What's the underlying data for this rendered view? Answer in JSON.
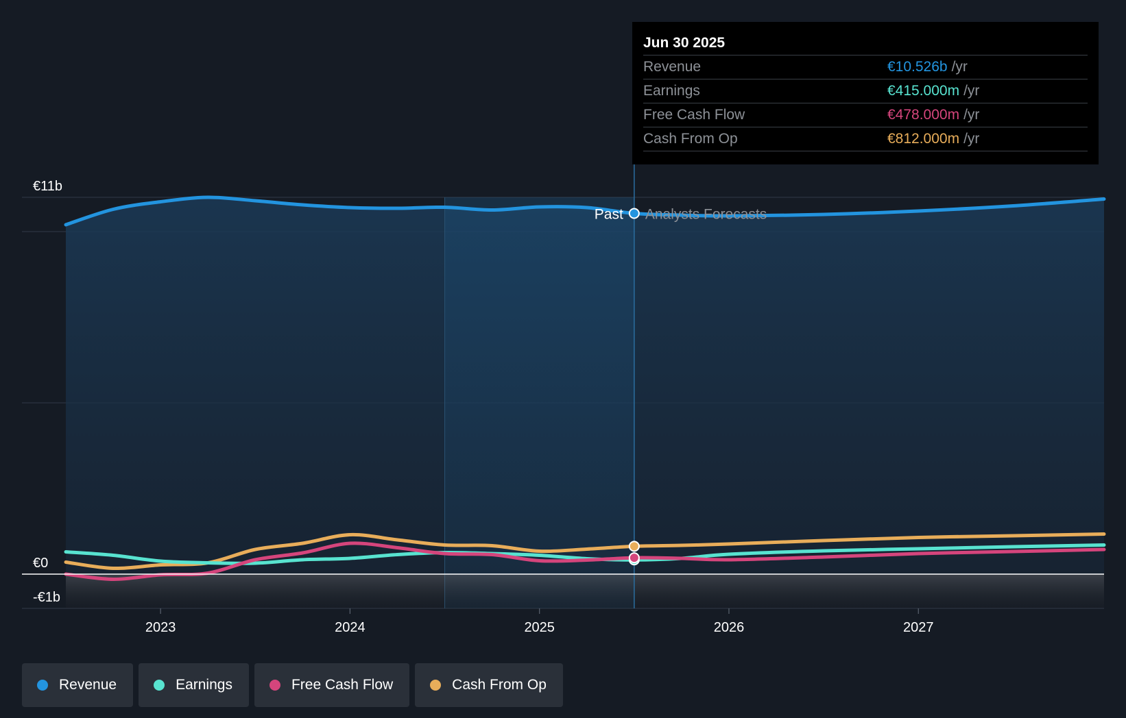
{
  "chart_data": {
    "type": "line",
    "y_unit": "€b",
    "ylim": [
      -1,
      11
    ],
    "y_ticks": [
      {
        "value": 11,
        "label": "€11b"
      },
      {
        "value": 0,
        "label": "€0"
      },
      {
        "value": -1,
        "label": "-€1b"
      }
    ],
    "xlim": [
      2022.5,
      2027.98
    ],
    "x_ticks": [
      {
        "value": 2023,
        "label": "2023"
      },
      {
        "value": 2024,
        "label": "2024"
      },
      {
        "value": 2025,
        "label": "2025"
      },
      {
        "value": 2026,
        "label": "2026"
      },
      {
        "value": 2027,
        "label": "2027"
      }
    ],
    "divider_x": 2025.5,
    "past_label": "Past",
    "forecast_label": "Analysts Forecasts",
    "series": [
      {
        "name": "Revenue",
        "color": "#2394df",
        "x": [
          2022.5,
          2022.75,
          2023.0,
          2023.25,
          2023.5,
          2023.75,
          2024.0,
          2024.25,
          2024.5,
          2024.75,
          2025.0,
          2025.25,
          2025.5,
          2025.75,
          2026.0,
          2026.5,
          2027.0,
          2027.5,
          2027.98
        ],
        "values": [
          10.2,
          10.65,
          10.87,
          11.0,
          10.9,
          10.78,
          10.7,
          10.68,
          10.71,
          10.63,
          10.72,
          10.7,
          10.53,
          10.48,
          10.46,
          10.5,
          10.6,
          10.75,
          10.95
        ]
      },
      {
        "name": "Earnings",
        "color": "#58e3d0",
        "x": [
          2022.5,
          2022.75,
          2023.0,
          2023.25,
          2023.5,
          2023.75,
          2024.0,
          2024.25,
          2024.5,
          2024.75,
          2025.0,
          2025.25,
          2025.5,
          2025.75,
          2026.0,
          2026.5,
          2027.0,
          2027.5,
          2027.98
        ],
        "values": [
          0.65,
          0.55,
          0.38,
          0.33,
          0.32,
          0.42,
          0.46,
          0.57,
          0.63,
          0.6,
          0.55,
          0.45,
          0.415,
          0.46,
          0.58,
          0.68,
          0.74,
          0.8,
          0.85
        ]
      },
      {
        "name": "Free Cash Flow",
        "color": "#d5457c",
        "x": [
          2022.5,
          2022.75,
          2023.0,
          2023.25,
          2023.5,
          2023.75,
          2024.0,
          2024.25,
          2024.5,
          2024.75,
          2025.0,
          2025.25,
          2025.5,
          2025.75,
          2026.0,
          2026.5,
          2027.0,
          2027.5,
          2027.98
        ],
        "values": [
          0.0,
          -0.15,
          -0.02,
          0.03,
          0.42,
          0.62,
          0.9,
          0.77,
          0.6,
          0.57,
          0.39,
          0.41,
          0.478,
          0.46,
          0.42,
          0.5,
          0.6,
          0.66,
          0.72
        ]
      },
      {
        "name": "Cash From Op",
        "color": "#e8ad5a",
        "x": [
          2022.5,
          2022.75,
          2023.0,
          2023.25,
          2023.5,
          2023.75,
          2024.0,
          2024.25,
          2024.5,
          2024.75,
          2025.0,
          2025.25,
          2025.5,
          2025.75,
          2026.0,
          2026.5,
          2027.0,
          2027.5,
          2027.98
        ],
        "values": [
          0.35,
          0.17,
          0.27,
          0.33,
          0.72,
          0.9,
          1.15,
          1.0,
          0.85,
          0.83,
          0.67,
          0.73,
          0.812,
          0.84,
          0.88,
          0.98,
          1.07,
          1.12,
          1.17
        ]
      }
    ]
  },
  "tooltip": {
    "date": "Jun 30 2025",
    "unit": "/yr",
    "rows": [
      {
        "name": "Revenue",
        "value": "€10.526b",
        "color": "#2394df"
      },
      {
        "name": "Earnings",
        "value": "€415.000m",
        "color": "#58e3d0"
      },
      {
        "name": "Free Cash Flow",
        "value": "€478.000m",
        "color": "#d5457c"
      },
      {
        "name": "Cash From Op",
        "value": "€812.000m",
        "color": "#e8ad5a"
      }
    ]
  },
  "legend": [
    {
      "label": "Revenue",
      "color": "#2394df"
    },
    {
      "label": "Earnings",
      "color": "#58e3d0"
    },
    {
      "label": "Free Cash Flow",
      "color": "#d5457c"
    },
    {
      "label": "Cash From Op",
      "color": "#e8ad5a"
    }
  ],
  "colors": {
    "background": "#151b24",
    "past_highlight": "#1a4a70",
    "grid": "#2c3440"
  }
}
